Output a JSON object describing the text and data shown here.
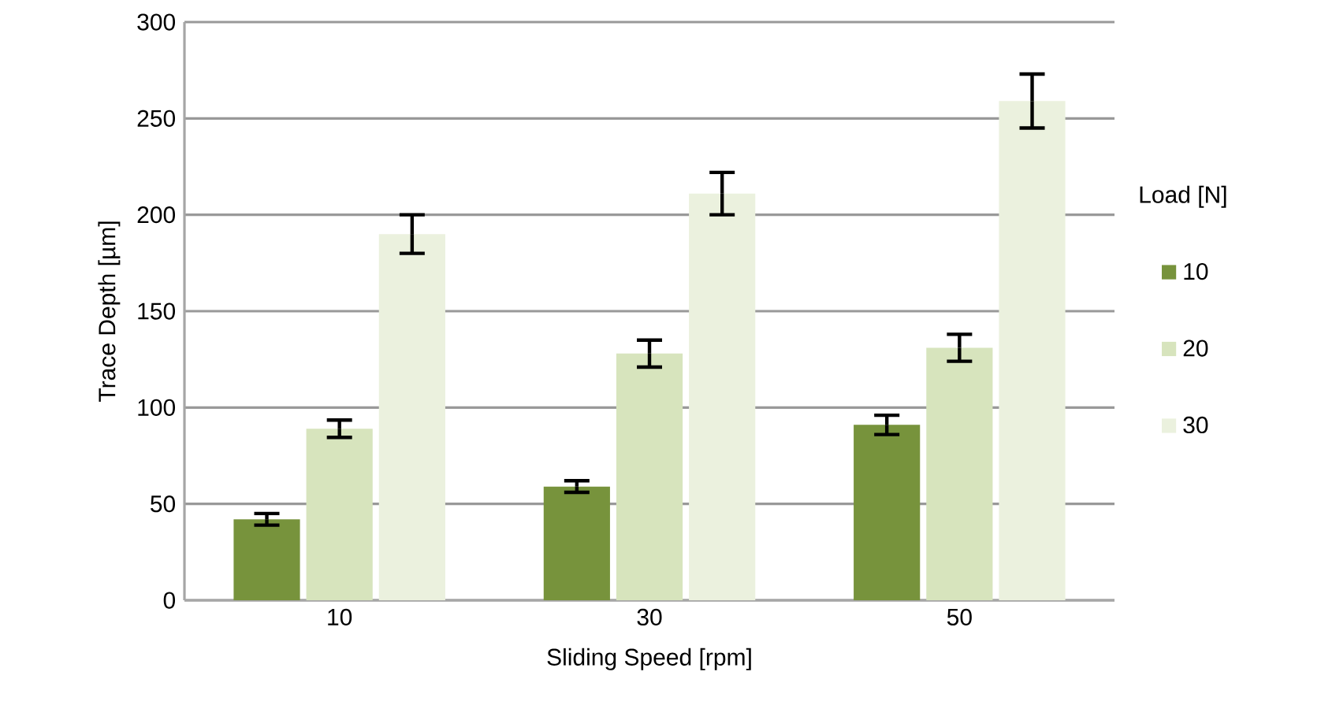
{
  "chart_data": {
    "type": "bar",
    "xlabel": "Sliding Speed [rpm]",
    "ylabel": "Trace Depth [µm]",
    "legend_title": "Load [N]",
    "categories": [
      "10",
      "30",
      "50"
    ],
    "series": [
      {
        "name": "10",
        "color": "#77933c",
        "values": [
          42,
          59,
          91
        ],
        "errors": [
          3,
          3,
          5
        ]
      },
      {
        "name": "20",
        "color": "#d7e4bd",
        "values": [
          89,
          128,
          131
        ],
        "errors": [
          4.5,
          7,
          7
        ]
      },
      {
        "name": "30",
        "color": "#ebf1de",
        "values": [
          190,
          211,
          259
        ],
        "errors": [
          10,
          11,
          14
        ]
      }
    ],
    "ylim": [
      0,
      300
    ],
    "yticks": [
      0,
      50,
      100,
      150,
      200,
      250,
      300
    ],
    "grid": "y",
    "legend": "right"
  }
}
